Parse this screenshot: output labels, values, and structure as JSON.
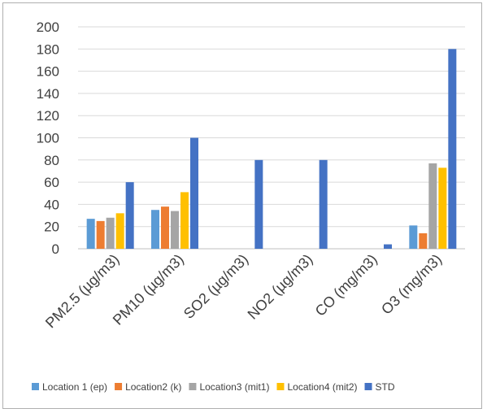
{
  "chart_data": {
    "type": "bar",
    "title": "",
    "xlabel": "",
    "ylabel": "",
    "ylim": [
      0,
      200
    ],
    "yticks": [
      0,
      20,
      40,
      60,
      80,
      100,
      120,
      140,
      160,
      180,
      200
    ],
    "grid": true,
    "legend_position": "bottom",
    "categories": [
      "PM2.5 (µg/m3)",
      "PM10 (µg/m3)",
      "SO2 (µg/m3)",
      "NO2 (µg/m3)",
      "CO (mg/m3)",
      "O3 (mg/m3)"
    ],
    "series": [
      {
        "name": "Location 1 (ep)",
        "color": "#5B9BD5",
        "values": [
          27,
          35,
          null,
          null,
          null,
          21
        ]
      },
      {
        "name": "Location2 (k)",
        "color": "#ED7D31",
        "values": [
          25,
          38,
          null,
          null,
          null,
          14
        ]
      },
      {
        "name": "Location3 (mit1)",
        "color": "#A5A5A5",
        "values": [
          28,
          34,
          null,
          null,
          null,
          77
        ]
      },
      {
        "name": "Location4 (mit2)",
        "color": "#FFC000",
        "values": [
          32,
          51,
          null,
          null,
          null,
          73
        ]
      },
      {
        "name": "STD",
        "color": "#4472C4",
        "values": [
          60,
          100,
          80,
          80,
          4,
          180
        ]
      }
    ]
  }
}
